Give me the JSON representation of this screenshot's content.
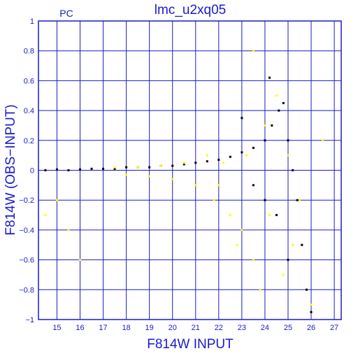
{
  "chart_data": {
    "type": "scatter",
    "title": "lmc_u2xq05",
    "corner_label": "PC",
    "xlabel": "F814W INPUT",
    "ylabel": "F814W (OBS−INPUT)",
    "xlim": [
      14.2,
      27.3
    ],
    "ylim": [
      -1,
      1
    ],
    "xticks": [
      15,
      16,
      17,
      18,
      19,
      20,
      21,
      22,
      23,
      24,
      25,
      26,
      27
    ],
    "yticks": [
      -1,
      -0.8,
      -0.6,
      -0.4,
      -0.2,
      0,
      0.2,
      0.4,
      0.6,
      0.8,
      1
    ],
    "ytick_labels": [
      "−1",
      "−0.8",
      "−0.6",
      "−0.4",
      "−0.2",
      "0",
      "0.2",
      "0.4",
      "0.6",
      "0.8",
      "1"
    ],
    "grid": true,
    "colors": {
      "axis": "#1a1acc",
      "grid": "#1a1acc",
      "series_black": "#000000",
      "series_yellow": "#ffff00"
    },
    "series": [
      {
        "color": "black",
        "points": [
          [
            14.5,
            0.0
          ],
          [
            15.0,
            0.005
          ],
          [
            15.5,
            0.0
          ],
          [
            16.0,
            0.005
          ],
          [
            16.5,
            0.01
          ],
          [
            17.0,
            0.01
          ],
          [
            17.5,
            0.01
          ],
          [
            18.0,
            0.02
          ],
          [
            18.5,
            0.02
          ],
          [
            19.0,
            0.02
          ],
          [
            19.5,
            0.03
          ],
          [
            20.0,
            0.03
          ],
          [
            20.5,
            0.04
          ],
          [
            21.0,
            0.05
          ],
          [
            21.5,
            0.06
          ],
          [
            22.0,
            0.07
          ],
          [
            22.5,
            0.09
          ],
          [
            23.0,
            0.12
          ],
          [
            23.5,
            0.15
          ],
          [
            24.0,
            0.2
          ],
          [
            24.3,
            0.3
          ],
          [
            24.6,
            0.4
          ],
          [
            24.8,
            0.45
          ],
          [
            25.0,
            0.2
          ],
          [
            25.2,
            0.0
          ],
          [
            25.4,
            -0.2
          ],
          [
            25.6,
            -0.5
          ],
          [
            25.8,
            -0.8
          ],
          [
            26.0,
            -0.95
          ],
          [
            24.5,
            -0.3
          ],
          [
            24.0,
            -0.2
          ],
          [
            23.5,
            -0.1
          ],
          [
            25.0,
            -0.6
          ],
          [
            23.0,
            0.35
          ],
          [
            24.2,
            0.62
          ]
        ]
      },
      {
        "color": "yellow",
        "points": [
          [
            17.5,
            0.02
          ],
          [
            18.0,
            -0.03
          ],
          [
            18.5,
            0.02
          ],
          [
            19.0,
            -0.04
          ],
          [
            19.5,
            0.03
          ],
          [
            20.0,
            -0.06
          ],
          [
            20.5,
            0.05
          ],
          [
            21.0,
            -0.1
          ],
          [
            21.5,
            0.1
          ],
          [
            21.8,
            -0.2
          ],
          [
            22.0,
            -0.1
          ],
          [
            22.2,
            0.05
          ],
          [
            22.5,
            -0.3
          ],
          [
            22.8,
            -0.5
          ],
          [
            23.0,
            -0.4
          ],
          [
            23.2,
            0.1
          ],
          [
            23.5,
            -0.6
          ],
          [
            23.8,
            -0.8
          ],
          [
            24.0,
            0.3
          ],
          [
            24.2,
            -0.3
          ],
          [
            24.5,
            0.5
          ],
          [
            24.8,
            -0.7
          ],
          [
            25.0,
            0.1
          ],
          [
            25.2,
            -0.5
          ],
          [
            25.5,
            -0.2
          ],
          [
            15.5,
            -0.4
          ],
          [
            15.0,
            -0.2
          ],
          [
            16.0,
            -0.6
          ],
          [
            14.5,
            -0.3
          ],
          [
            26.0,
            -0.9
          ],
          [
            26.5,
            0.2
          ],
          [
            23.5,
            0.8
          ]
        ]
      }
    ]
  }
}
